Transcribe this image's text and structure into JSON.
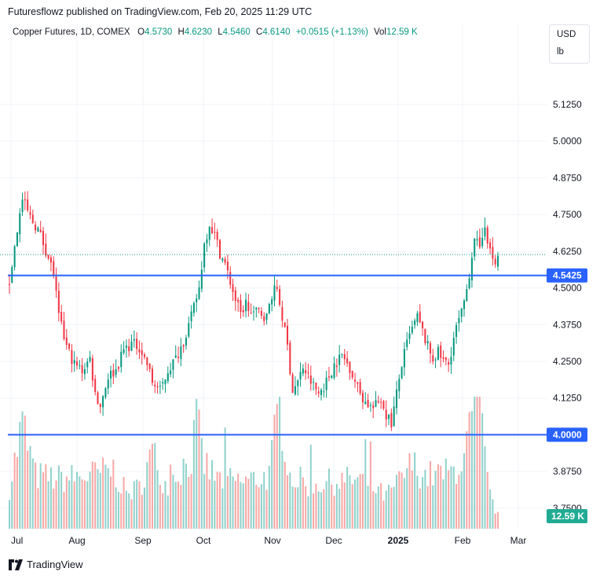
{
  "header": {
    "publisher_text": "Futuresflowz published on TradingView.com, Feb 20, 2025 11:29 UTC"
  },
  "legend": {
    "symbol": "Copper Futures, 1D, COMEX",
    "open_label": "O",
    "open": "4.5730",
    "high_label": "H",
    "high": "4.6230",
    "low_label": "L",
    "low": "4.5460",
    "close_label": "C",
    "close": "4.6140",
    "change": "+0.0515 (+1.13%)",
    "vol_label": "Vol",
    "vol": "12.59 K"
  },
  "units": {
    "currency": "USD",
    "unit": "lb"
  },
  "footer": {
    "brand": "TradingView"
  },
  "colors": {
    "up": "#089981",
    "down": "#f23645",
    "up_vol": "#92d2cc",
    "down_vol": "#f7a9a7",
    "hline": "#2962ff",
    "price_label_bg": "#2962ff",
    "vol_label_bg": "#22ab94"
  },
  "chart_data": {
    "type": "candlestick",
    "y_ticks": [
      "5.1250",
      "5.0000",
      "4.8750",
      "4.7500",
      "4.6250",
      "4.5000",
      "4.3750",
      "4.2500",
      "4.1250",
      "3.8750",
      "3.7500"
    ],
    "x_ticks": [
      "Jul",
      "Aug",
      "Sep",
      "Oct",
      "Nov",
      "Dec",
      "2025",
      "Feb",
      "Mar"
    ],
    "ylim": [
      3.68,
      5.24
    ],
    "horizontal_lines": [
      4.5425,
      4.0
    ],
    "price_labels": [
      "4.5425",
      "4.0000"
    ],
    "volume_label": "12.59 K",
    "current_price": 4.614,
    "anchors": [
      [
        0,
        4.52
      ],
      [
        3,
        4.7
      ],
      [
        5,
        4.8
      ],
      [
        8,
        4.74
      ],
      [
        11,
        4.7
      ],
      [
        14,
        4.63
      ],
      [
        17,
        4.55
      ],
      [
        19,
        4.4
      ],
      [
        22,
        4.3
      ],
      [
        25,
        4.24
      ],
      [
        28,
        4.22
      ],
      [
        31,
        4.26
      ],
      [
        33,
        4.14
      ],
      [
        35,
        4.1
      ],
      [
        38,
        4.2
      ],
      [
        41,
        4.22
      ],
      [
        44,
        4.29
      ],
      [
        47,
        4.31
      ],
      [
        50,
        4.3
      ],
      [
        53,
        4.24
      ],
      [
        55,
        4.18
      ],
      [
        58,
        4.15
      ],
      [
        61,
        4.22
      ],
      [
        64,
        4.26
      ],
      [
        67,
        4.32
      ],
      [
        70,
        4.4
      ],
      [
        73,
        4.5
      ],
      [
        75,
        4.65
      ],
      [
        77,
        4.72
      ],
      [
        79,
        4.68
      ],
      [
        81,
        4.62
      ],
      [
        83,
        4.58
      ],
      [
        85,
        4.52
      ],
      [
        87,
        4.46
      ],
      [
        89,
        4.41
      ],
      [
        91,
        4.45
      ],
      [
        93,
        4.41
      ],
      [
        96,
        4.42
      ],
      [
        99,
        4.4
      ],
      [
        101,
        4.48
      ],
      [
        103,
        4.5
      ],
      [
        105,
        4.4
      ],
      [
        107,
        4.3
      ],
      [
        109,
        4.15
      ],
      [
        111,
        4.18
      ],
      [
        113,
        4.23
      ],
      [
        116,
        4.18
      ],
      [
        119,
        4.14
      ],
      [
        122,
        4.18
      ],
      [
        125,
        4.24
      ],
      [
        128,
        4.27
      ],
      [
        131,
        4.23
      ],
      [
        134,
        4.16
      ],
      [
        137,
        4.11
      ],
      [
        140,
        4.09
      ],
      [
        143,
        4.12
      ],
      [
        145,
        4.07
      ],
      [
        147,
        4.04
      ],
      [
        149,
        4.14
      ],
      [
        151,
        4.24
      ],
      [
        153,
        4.31
      ],
      [
        155,
        4.36
      ],
      [
        157,
        4.4
      ],
      [
        159,
        4.35
      ],
      [
        161,
        4.3
      ],
      [
        163,
        4.26
      ],
      [
        165,
        4.28
      ],
      [
        167,
        4.25
      ],
      [
        169,
        4.24
      ],
      [
        171,
        4.33
      ],
      [
        173,
        4.39
      ],
      [
        175,
        4.44
      ],
      [
        177,
        4.55
      ],
      [
        179,
        4.68
      ],
      [
        181,
        4.62
      ],
      [
        183,
        4.72
      ],
      [
        185,
        4.62
      ],
      [
        187,
        4.58
      ],
      [
        188,
        4.61
      ]
    ],
    "volume_ylim": [
      0,
      4.5
    ],
    "volume_anchors": [
      [
        0,
        1.4
      ],
      [
        5,
        3.6
      ],
      [
        10,
        1.8
      ],
      [
        20,
        1.7
      ],
      [
        30,
        1.8
      ],
      [
        40,
        2.0
      ],
      [
        45,
        1.2
      ],
      [
        50,
        1.4
      ],
      [
        55,
        2.6
      ],
      [
        60,
        1.5
      ],
      [
        70,
        2.4
      ],
      [
        72,
        3.6
      ],
      [
        75,
        2.2
      ],
      [
        80,
        1.7
      ],
      [
        90,
        1.6
      ],
      [
        100,
        1.8
      ],
      [
        104,
        4.3
      ],
      [
        108,
        1.8
      ],
      [
        115,
        1.5
      ],
      [
        125,
        1.6
      ],
      [
        135,
        1.7
      ],
      [
        140,
        1.4
      ],
      [
        145,
        1.1
      ],
      [
        150,
        1.6
      ],
      [
        155,
        2.2
      ],
      [
        160,
        1.8
      ],
      [
        170,
        1.9
      ],
      [
        175,
        2.4
      ],
      [
        178,
        3.6
      ],
      [
        181,
        4.3
      ],
      [
        183,
        2.3
      ],
      [
        185,
        1.1
      ],
      [
        188,
        0.45
      ]
    ]
  }
}
